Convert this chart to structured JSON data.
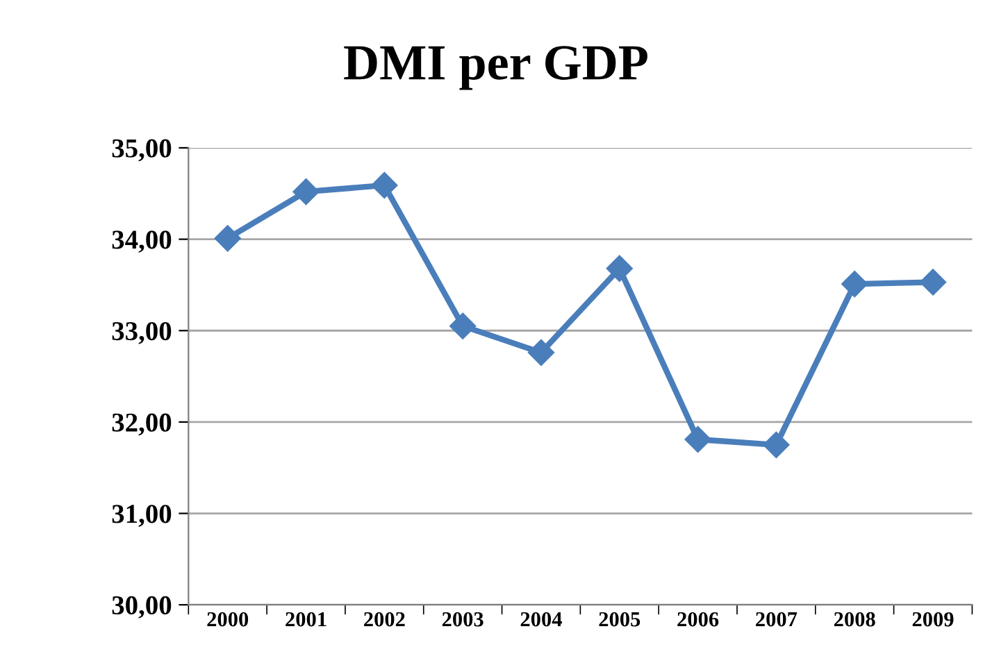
{
  "chart_data": {
    "type": "line",
    "title": "DMI per GDP",
    "categories": [
      "2000",
      "2001",
      "2002",
      "2003",
      "2004",
      "2005",
      "2006",
      "2007",
      "2008",
      "2009"
    ],
    "series": [
      {
        "color": "#4a7ebb",
        "values": [
          34.01,
          34.52,
          34.59,
          33.05,
          32.76,
          33.68,
          31.81,
          31.75,
          33.51,
          33.53
        ]
      }
    ],
    "ylim": [
      30,
      35
    ],
    "yticks": [
      {
        "value": 30,
        "label": "30,00"
      },
      {
        "value": 31,
        "label": "31,00"
      },
      {
        "value": 32,
        "label": "32,00"
      },
      {
        "value": 33,
        "label": "33,00"
      },
      {
        "value": 34,
        "label": "34,00"
      },
      {
        "value": 35,
        "label": "35,00"
      }
    ],
    "grid": "y",
    "marker": "diamond",
    "line_style": "solid",
    "legend": false
  }
}
